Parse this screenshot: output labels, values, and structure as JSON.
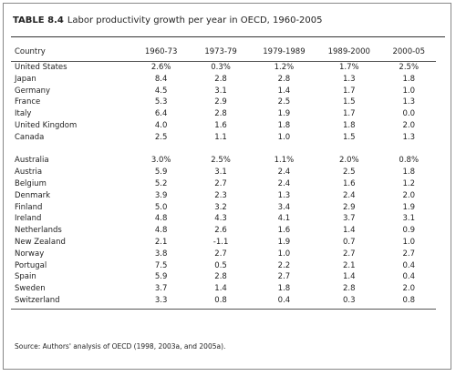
{
  "header": {
    "label": "TABLE 8.4",
    "title": "Labor productivity growth per year in OECD, 1960-2005"
  },
  "table": {
    "columns": [
      "Country",
      "1960-73",
      "1973-79",
      "1979-1989",
      "1989-2000",
      "2000-05"
    ],
    "groups": [
      [
        [
          "United States",
          "2.6%",
          "0.3%",
          "1.2%",
          "1.7%",
          "2.5%"
        ],
        [
          "Japan",
          "8.4",
          "2.8",
          "2.8",
          "1.3",
          "1.8"
        ],
        [
          "Germany",
          "4.5",
          "3.1",
          "1.4",
          "1.7",
          "1.0"
        ],
        [
          "France",
          "5.3",
          "2.9",
          "2.5",
          "1.5",
          "1.3"
        ],
        [
          "Italy",
          "6.4",
          "2.8",
          "1.9",
          "1.7",
          "0.0"
        ],
        [
          "United Kingdom",
          "4.0",
          "1.6",
          "1.8",
          "1.8",
          "2.0"
        ],
        [
          "Canada",
          "2.5",
          "1.1",
          "1.0",
          "1.5",
          "1.3"
        ]
      ],
      [
        [
          "Australia",
          "3.0%",
          "2.5%",
          "1.1%",
          "2.0%",
          "0.8%"
        ],
        [
          "Austria",
          "5.9",
          "3.1",
          "2.4",
          "2.5",
          "1.8"
        ],
        [
          "Belgium",
          "5.2",
          "2.7",
          "2.4",
          "1.6",
          "1.2"
        ],
        [
          "Denmark",
          "3.9",
          "2.3",
          "1.3",
          "2.4",
          "2.0"
        ],
        [
          "Finland",
          "5.0",
          "3.2",
          "3.4",
          "2.9",
          "1.9"
        ],
        [
          "Ireland",
          "4.8",
          "4.3",
          "4.1",
          "3.7",
          "3.1"
        ],
        [
          "Netherlands",
          "4.8",
          "2.6",
          "1.6",
          "1.4",
          "0.9"
        ],
        [
          "New Zealand",
          "2.1",
          "-1.1",
          "1.9",
          "0.7",
          "1.0"
        ],
        [
          "Norway",
          "3.8",
          "2.7",
          "1.0",
          "2.7",
          "2.7"
        ],
        [
          "Portugal",
          "7.5",
          "0.5",
          "2.2",
          "2.1",
          "0.4"
        ],
        [
          "Spain",
          "5.9",
          "2.8",
          "2.7",
          "1.4",
          "0.4"
        ],
        [
          "Sweden",
          "3.7",
          "1.4",
          "1.8",
          "2.8",
          "2.0"
        ],
        [
          "Switzerland",
          "3.3",
          "0.8",
          "0.4",
          "0.3",
          "0.8"
        ]
      ]
    ]
  },
  "source": "Source: Authors' analysis of OECD (1998, 2003a, and 2005a)."
}
